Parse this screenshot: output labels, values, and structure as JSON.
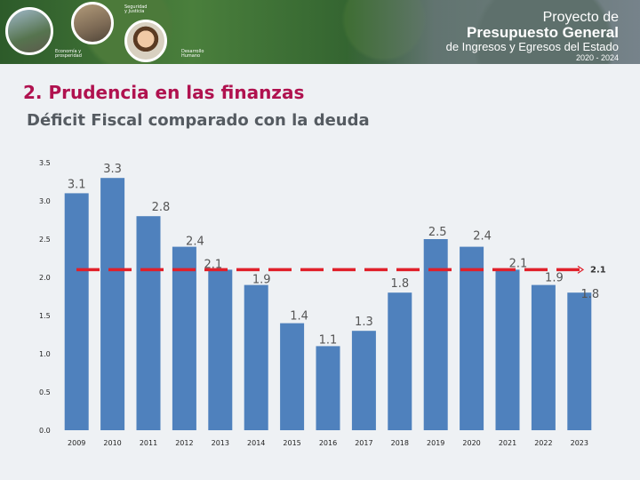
{
  "header": {
    "label_economia": "Economía y prosperidad",
    "label_seguridad": "Seguridad y Justicia",
    "label_desarrollo": "Desarrollo Humano",
    "proyecto_l1": "Proyecto de",
    "proyecto_l2": "Presupuesto General",
    "proyecto_l3": "de Ingresos y Egresos del Estado",
    "proyecto_l4": "2020 - 2024"
  },
  "slide": {
    "title": "2. Prudencia en las finanzas",
    "subtitle": "Déficit Fiscal comparado con la deuda"
  },
  "colors": {
    "bar": "#4f81bd",
    "reference_line": "#e0202a",
    "title": "#b0124f"
  },
  "chart_data": {
    "type": "bar",
    "title": "Déficit Fiscal comparado con la deuda",
    "categories": [
      "2009",
      "2010",
      "2011",
      "2012",
      "2013",
      "2014",
      "2015",
      "2016",
      "2017",
      "2018",
      "2019",
      "2020",
      "2021",
      "2022",
      "2023"
    ],
    "values": [
      3.1,
      3.3,
      2.8,
      2.4,
      2.1,
      1.9,
      1.4,
      1.1,
      1.3,
      1.8,
      2.5,
      2.4,
      2.1,
      1.9,
      1.8
    ],
    "data_labels": [
      "3.1",
      "3.3",
      "2.8",
      "2.4",
      "2.1",
      "1.9",
      "1.4",
      "1.1",
      "1.3",
      "1.8",
      "2.5",
      "2.4",
      "2.1",
      "1.9",
      "1.8"
    ],
    "ylim": [
      0,
      3.5
    ],
    "yticks": [
      "0.0",
      "0.5",
      "1.0",
      "1.5",
      "2.0",
      "2.5",
      "3.0",
      "3.5"
    ],
    "ytick_values": [
      0,
      0.5,
      1.0,
      1.5,
      2.0,
      2.5,
      3.0,
      3.5
    ],
    "reference_line": {
      "value": 2.1,
      "label": "2.1",
      "style": "dashed"
    },
    "xlabel": "",
    "ylabel": ""
  }
}
